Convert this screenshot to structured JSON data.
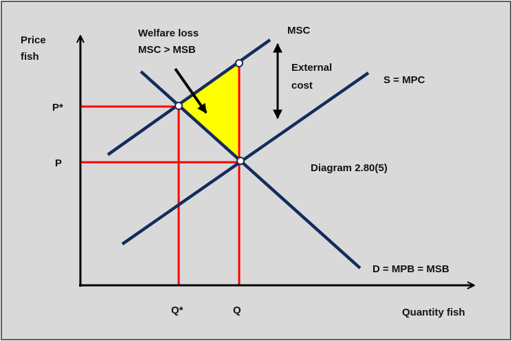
{
  "colors": {
    "background": "#d9d9d9",
    "frame": "#5b5b5b",
    "curve": "#142c5c",
    "guide": "#ff0000",
    "welfare_loss": "#ffff00",
    "axis": "#000000",
    "point_fill": "#ffffff"
  },
  "labels": {
    "y_axis": [
      "Price",
      "fish"
    ],
    "x_axis": "Quantity fish",
    "price_star": "P*",
    "price": "P",
    "qty_star": "Q*",
    "qty": "Q",
    "msc": "MSC",
    "supply": "S = MPC",
    "demand": "D = MPB = MSB",
    "welfare_loss": [
      "Welfare loss",
      "MSC > MSB"
    ],
    "external_cost": [
      "External",
      "cost"
    ],
    "diagram_id": "Diagram 2.80(5)"
  },
  "icons": {
    "welfare_arrow": "arrow-down-right-icon",
    "external_cost_arrow": "double-arrow-vertical-icon",
    "axis_arrows": "arrowhead-icon"
  }
}
